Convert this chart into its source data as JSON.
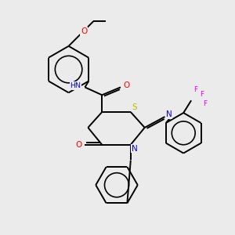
{
  "background_color": "#ebebeb",
  "bond_color": "#000000",
  "atom_colors": {
    "N": "#0000ff",
    "O": "#ff0000",
    "S": "#bbbb00",
    "F": "#ee00ee",
    "H": "#888888",
    "C": "#000000"
  },
  "figsize": [
    3.0,
    3.0
  ],
  "dpi": 100,
  "lw": 1.4
}
